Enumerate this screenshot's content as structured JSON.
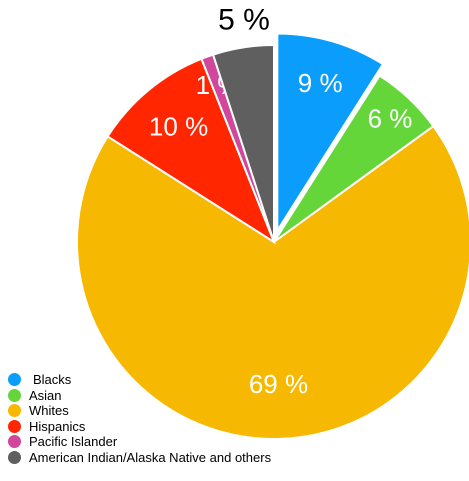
{
  "chart_data": {
    "type": "pie",
    "title": "",
    "slices": [
      {
        "label": "Blacks",
        "value": 9,
        "value_label": "9 %",
        "color": "#0a9dfb",
        "exploded": true
      },
      {
        "label": "Asian",
        "value": 6,
        "value_label": "6 %",
        "color": "#65d63a",
        "exploded": false
      },
      {
        "label": "Whites",
        "value": 69,
        "value_label": "69 %",
        "color": "#f6b800",
        "exploded": false
      },
      {
        "label": "Hispanics",
        "value": 10,
        "value_label": "10 %",
        "color": "#ff2600",
        "exploded": false
      },
      {
        "label": "Pacific Islander",
        "value": 1,
        "value_label": "1 %",
        "color": "#d0479b",
        "exploded": false
      },
      {
        "label": "American Indian/Alaska Native  and others",
        "value": 5,
        "value_label": "5 %",
        "color": "#5f5f5f",
        "exploded": false
      }
    ],
    "legend_position": "bottom-left",
    "start": "top, clockwise"
  }
}
